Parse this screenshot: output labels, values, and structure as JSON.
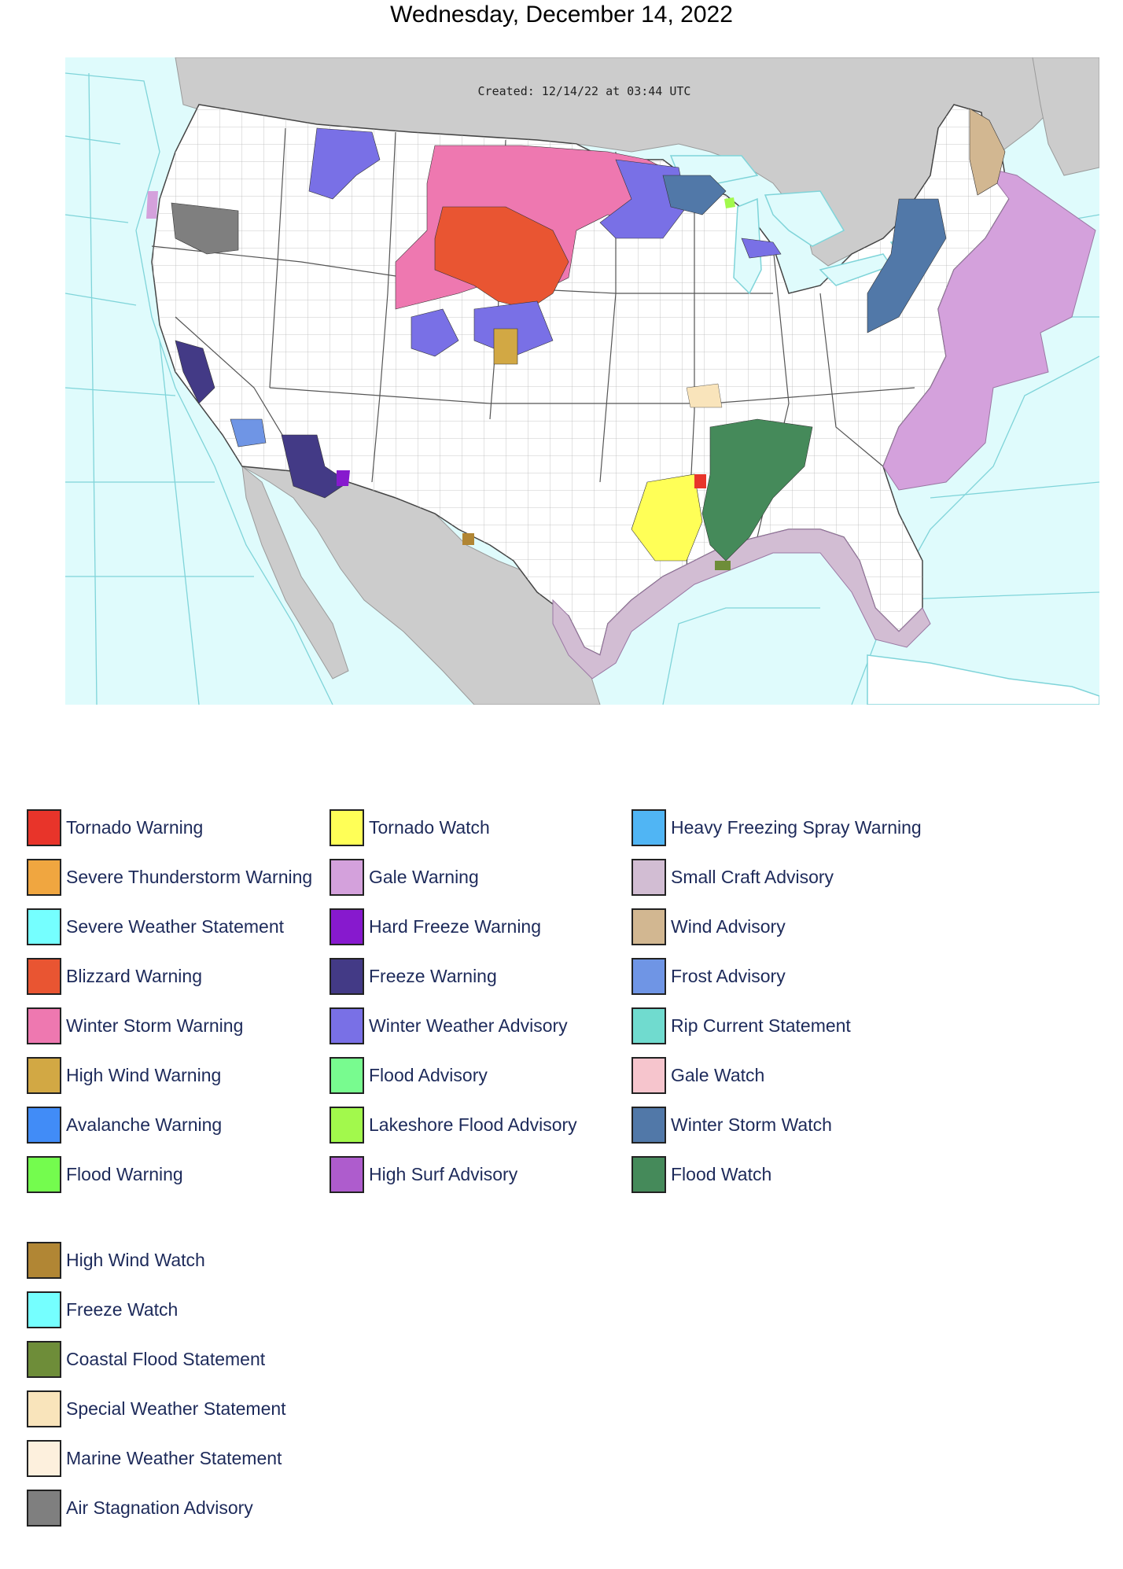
{
  "page": {
    "title": "Wednesday, December 14, 2022"
  },
  "map": {
    "created_text": "Created: 12/14/22 at 03:44 UTC",
    "colors": {
      "ocean": "#dffbfc",
      "land_foreign": "#cccccc",
      "land_us": "#ffffff",
      "lines": "#7fd4d9"
    }
  },
  "legend": {
    "columns": [
      [
        {
          "label": "Tornado Warning",
          "color": "#e8342a"
        },
        {
          "label": "Severe Thunderstorm Warning",
          "color": "#f0a640"
        },
        {
          "label": "Severe Weather Statement",
          "color": "#75ffff"
        },
        {
          "label": "Blizzard Warning",
          "color": "#e95532"
        },
        {
          "label": "Winter Storm Warning",
          "color": "#ee78b0"
        },
        {
          "label": "High Wind Warning",
          "color": "#d2a844"
        },
        {
          "label": "Avalanche Warning",
          "color": "#418cf7"
        },
        {
          "label": "Flood Warning",
          "color": "#74fc4e"
        }
      ],
      [
        {
          "label": "Tornado Watch",
          "color": "#ffff57"
        },
        {
          "label": "Gale Warning",
          "color": "#d4a1dc"
        },
        {
          "label": "Hard Freeze Warning",
          "color": "#8719ce"
        },
        {
          "label": "Freeze Warning",
          "color": "#433a86"
        },
        {
          "label": "Winter Weather Advisory",
          "color": "#7970e6"
        },
        {
          "label": "Flood Advisory",
          "color": "#78fb8f"
        },
        {
          "label": "Lakeshore Flood Advisory",
          "color": "#a2f94c"
        },
        {
          "label": "High Surf Advisory",
          "color": "#ae5ccd"
        }
      ],
      [
        {
          "label": "Heavy Freezing Spray Warning",
          "color": "#50b5f4"
        },
        {
          "label": "Small Craft Advisory",
          "color": "#d2bdd3"
        },
        {
          "label": "Wind Advisory",
          "color": "#d2b791"
        },
        {
          "label": "Frost Advisory",
          "color": "#6f95e5"
        },
        {
          "label": "Rip Current Statement",
          "color": "#70dbcf"
        },
        {
          "label": "Gale Watch",
          "color": "#f6c5cd"
        },
        {
          "label": "Winter Storm Watch",
          "color": "#5178a8"
        },
        {
          "label": "Flood Watch",
          "color": "#458a5a"
        }
      ]
    ],
    "extra": [
      {
        "label": "High Wind Watch",
        "color": "#b18634"
      },
      {
        "label": "Freeze Watch",
        "color": "#75ffff"
      },
      {
        "label": "Coastal Flood Statement",
        "color": "#6e8d39"
      },
      {
        "label": "Special Weather Statement",
        "color": "#f9e4bb"
      },
      {
        "label": "Marine Weather Statement",
        "color": "#fdf0dd"
      },
      {
        "label": "Air Stagnation Advisory",
        "color": "#7f7f7f"
      }
    ]
  }
}
